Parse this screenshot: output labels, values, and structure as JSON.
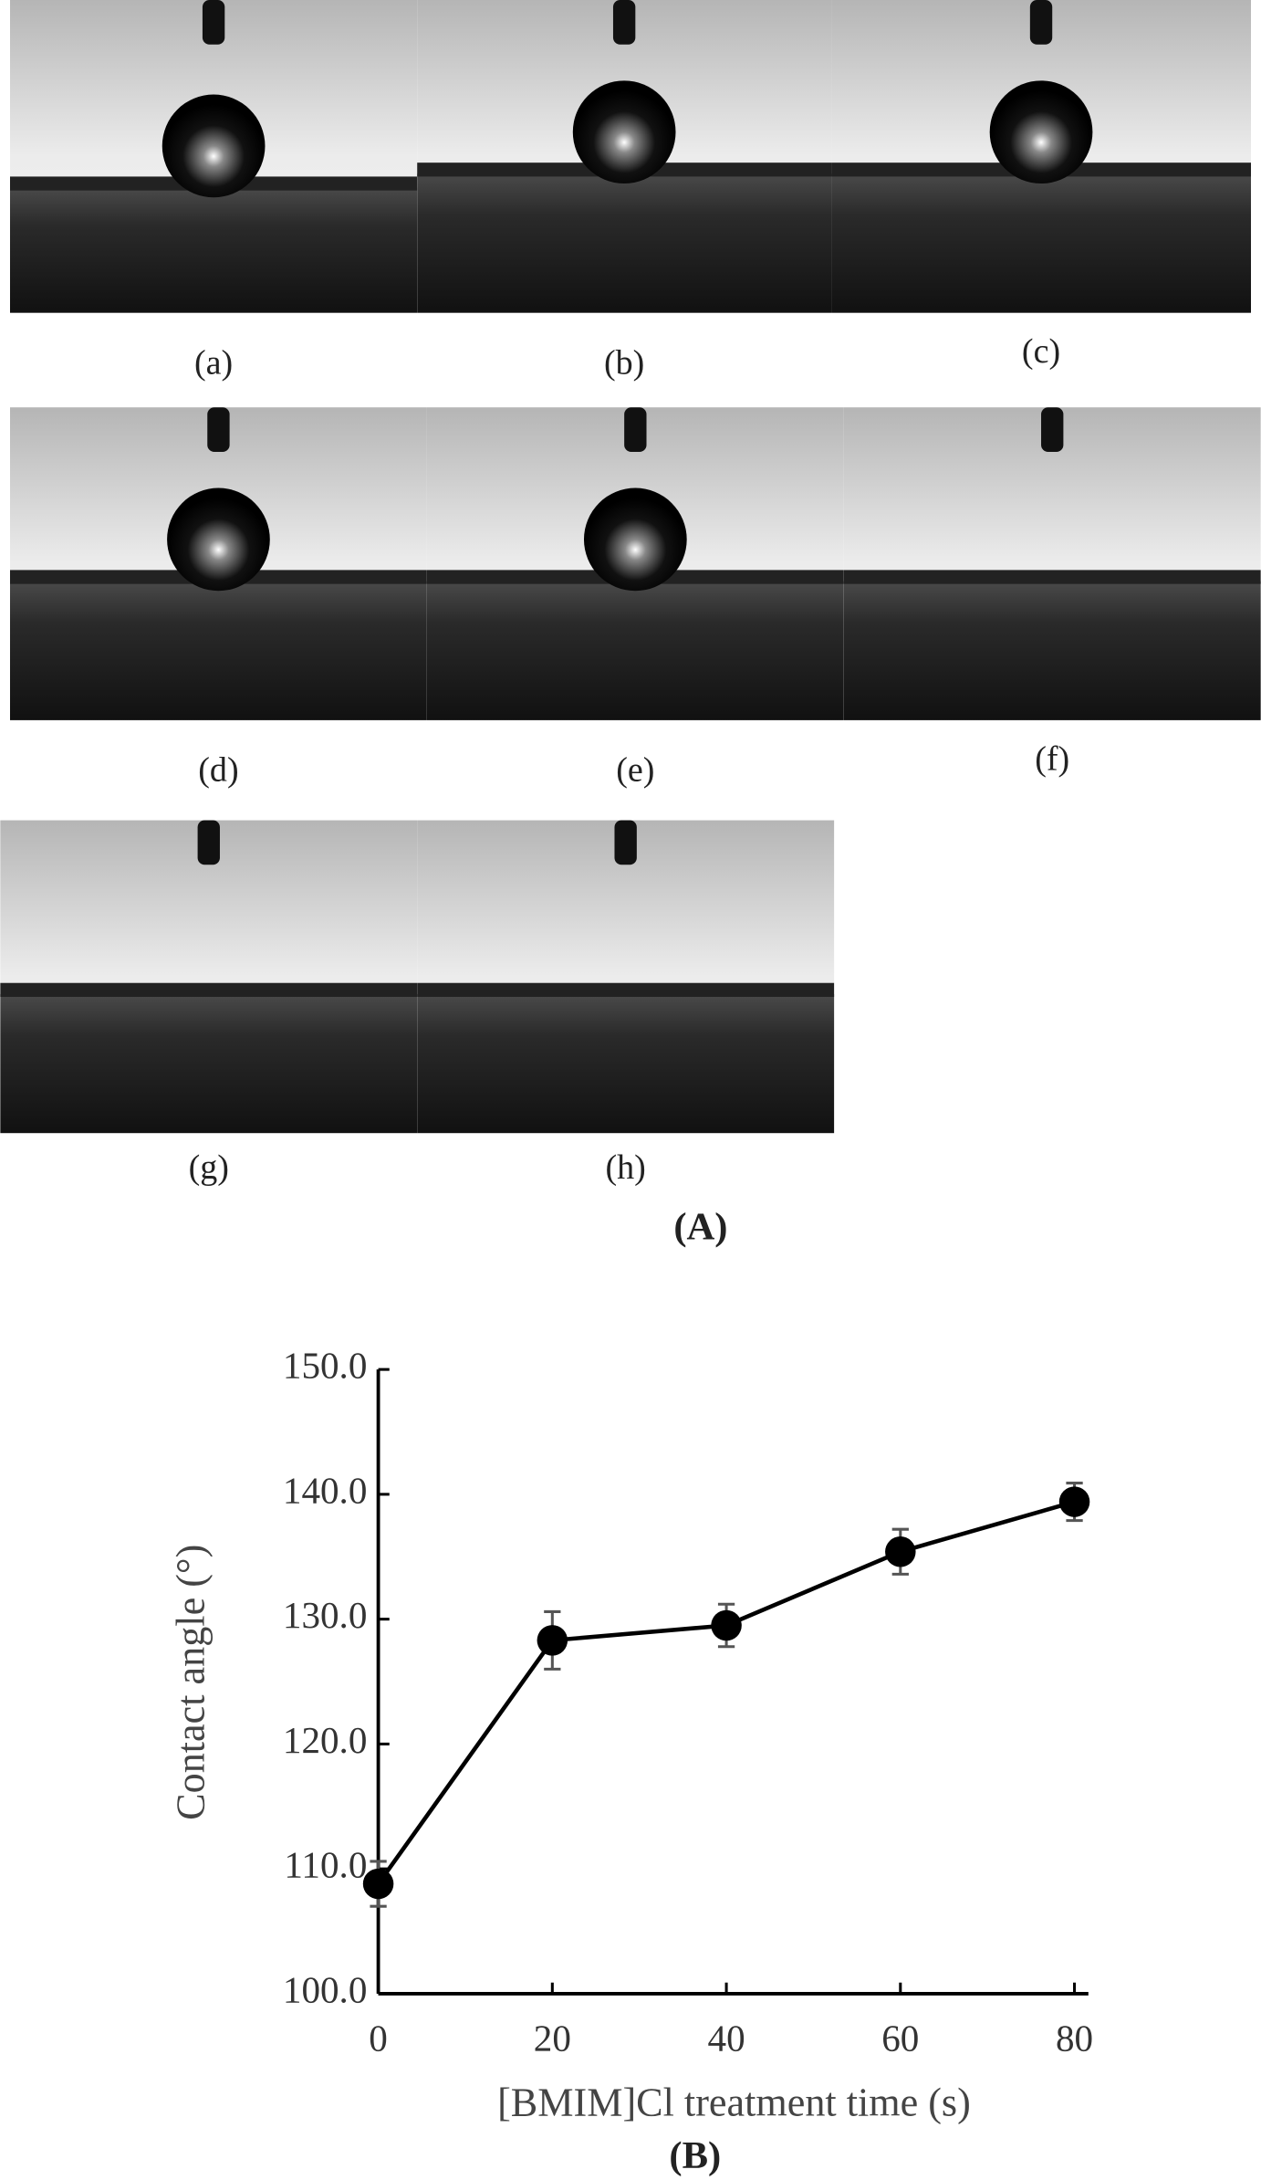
{
  "panel_a": {
    "panels": [
      "(a)",
      "(b)",
      "(c)",
      "(d)",
      "(e)",
      "(f)",
      "(g)",
      "(h)"
    ],
    "label": "(A)"
  },
  "chart_data": {
    "type": "line",
    "label": "(B)",
    "x_label": "[BMIM]Cl treatment time (s)",
    "y_label": "Contact angle (°)",
    "x": [
      0,
      20,
      40,
      60,
      80
    ],
    "values": [
      108.8,
      128.3,
      129.5,
      135.4,
      139.4
    ],
    "errors": [
      1.8,
      2.3,
      1.7,
      1.8,
      1.5
    ],
    "color": "#000000",
    "xlim": [
      0,
      81.6
    ],
    "xticks": [
      0,
      20,
      40,
      60,
      80
    ],
    "ylim": [
      100,
      150
    ],
    "yticks": [
      {
        "value": 100,
        "label": "100.0"
      },
      {
        "value": 110,
        "label": "110.0"
      },
      {
        "value": 120,
        "label": "120.0"
      },
      {
        "value": 130,
        "label": "130.0"
      },
      {
        "value": 140,
        "label": "140.0"
      },
      {
        "value": 150,
        "label": "150.0"
      }
    ],
    "grid": false
  }
}
